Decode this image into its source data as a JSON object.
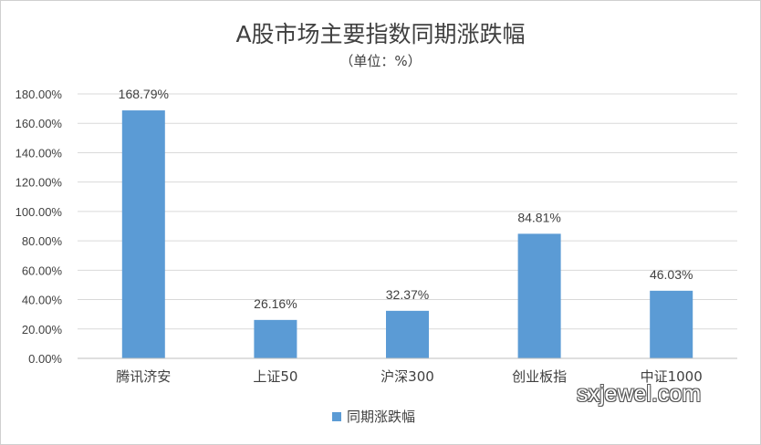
{
  "chart_data": {
    "type": "bar",
    "title": "A股市场主要指数同期涨跌幅",
    "subtitle": "（单位：%）",
    "categories": [
      "腾讯济安",
      "上证50",
      "沪深300",
      "创业板指",
      "中证1000"
    ],
    "series": [
      {
        "name": "同期涨跌幅",
        "values": [
          168.79,
          26.16,
          32.37,
          84.81,
          46.03
        ],
        "labels": [
          "168.79%",
          "26.16%",
          "32.37%",
          "84.81%",
          "46.03%"
        ],
        "color": "#5b9bd5"
      }
    ],
    "ylim": [
      0,
      180
    ],
    "yticks": [
      0,
      20,
      40,
      60,
      80,
      100,
      120,
      140,
      160,
      180
    ],
    "ytick_labels": [
      "0.00%",
      "20.00%",
      "40.00%",
      "60.00%",
      "80.00%",
      "100.00%",
      "120.00%",
      "140.00%",
      "160.00%",
      "180.00%"
    ],
    "grid": true,
    "grid_color": "#d9d9d9",
    "legend_position": "bottom"
  },
  "watermark": "sxjewel.com"
}
